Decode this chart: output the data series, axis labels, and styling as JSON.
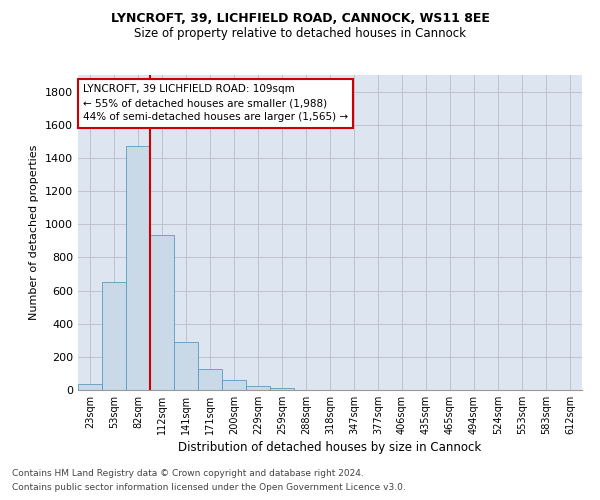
{
  "title1": "LYNCROFT, 39, LICHFIELD ROAD, CANNOCK, WS11 8EE",
  "title2": "Size of property relative to detached houses in Cannock",
  "xlabel": "Distribution of detached houses by size in Cannock",
  "ylabel": "Number of detached properties",
  "bar_labels": [
    "23sqm",
    "53sqm",
    "82sqm",
    "112sqm",
    "141sqm",
    "171sqm",
    "200sqm",
    "229sqm",
    "259sqm",
    "288sqm",
    "318sqm",
    "347sqm",
    "377sqm",
    "406sqm",
    "435sqm",
    "465sqm",
    "494sqm",
    "524sqm",
    "553sqm",
    "583sqm",
    "612sqm"
  ],
  "bar_values": [
    38,
    650,
    1470,
    935,
    290,
    125,
    62,
    25,
    13,
    0,
    0,
    0,
    0,
    0,
    0,
    0,
    0,
    0,
    0,
    0,
    0
  ],
  "bar_color": "#c9d9e8",
  "bar_edge_color": "#5a9abf",
  "vline_color": "#cc0000",
  "vline_pos": 2.5,
  "ylim": [
    0,
    1900
  ],
  "yticks": [
    0,
    200,
    400,
    600,
    800,
    1000,
    1200,
    1400,
    1600,
    1800
  ],
  "annotation_text": "LYNCROFT, 39 LICHFIELD ROAD: 109sqm\n← 55% of detached houses are smaller (1,988)\n44% of semi-detached houses are larger (1,565) →",
  "annotation_box_color": "#ffffff",
  "annotation_border_color": "#cc0000",
  "footer1": "Contains HM Land Registry data © Crown copyright and database right 2024.",
  "footer2": "Contains public sector information licensed under the Open Government Licence v3.0.",
  "grid_color": "#bbbbcc",
  "bg_color": "#dde6f0"
}
